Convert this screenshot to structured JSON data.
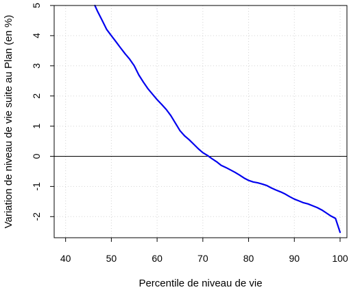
{
  "chart_data": {
    "type": "line",
    "title": "",
    "xlabel": "Percentile de niveau de vie",
    "ylabel": "Variation de niveau de vie suite au Plan (en %)",
    "xlim": [
      37.5,
      101.5
    ],
    "ylim": [
      -2.7,
      5.0
    ],
    "xticks": [
      40,
      50,
      60,
      70,
      80,
      90,
      100
    ],
    "yticks": [
      -2,
      -1,
      0,
      1,
      2,
      3,
      4,
      5
    ],
    "grid": true,
    "grid_style": "dotted",
    "reference_line_y": 0,
    "series": [
      {
        "color": "#0000ee",
        "x": [
          46.4,
          47,
          48,
          49,
          50,
          51,
          52,
          53,
          54,
          55,
          56,
          57,
          58,
          59,
          60,
          61,
          62,
          63,
          64,
          65,
          66,
          67,
          68,
          69,
          70,
          71,
          72,
          73,
          74,
          75,
          76,
          77,
          78,
          79,
          80,
          81,
          82,
          83,
          84,
          85,
          86,
          87,
          88,
          89,
          90,
          91,
          92,
          93,
          94,
          95,
          96,
          97,
          98,
          99,
          100
        ],
        "y": [
          5.0,
          4.8,
          4.5,
          4.2,
          4.0,
          3.8,
          3.6,
          3.4,
          3.22,
          3.0,
          2.7,
          2.46,
          2.24,
          2.06,
          1.88,
          1.72,
          1.55,
          1.35,
          1.1,
          0.85,
          0.68,
          0.55,
          0.4,
          0.25,
          0.12,
          0.03,
          -0.08,
          -0.18,
          -0.3,
          -0.37,
          -0.45,
          -0.53,
          -0.62,
          -0.72,
          -0.8,
          -0.85,
          -0.88,
          -0.92,
          -0.97,
          -1.05,
          -1.12,
          -1.18,
          -1.25,
          -1.34,
          -1.42,
          -1.48,
          -1.54,
          -1.58,
          -1.64,
          -1.7,
          -1.78,
          -1.88,
          -1.98,
          -2.06,
          -2.52
        ]
      }
    ]
  }
}
